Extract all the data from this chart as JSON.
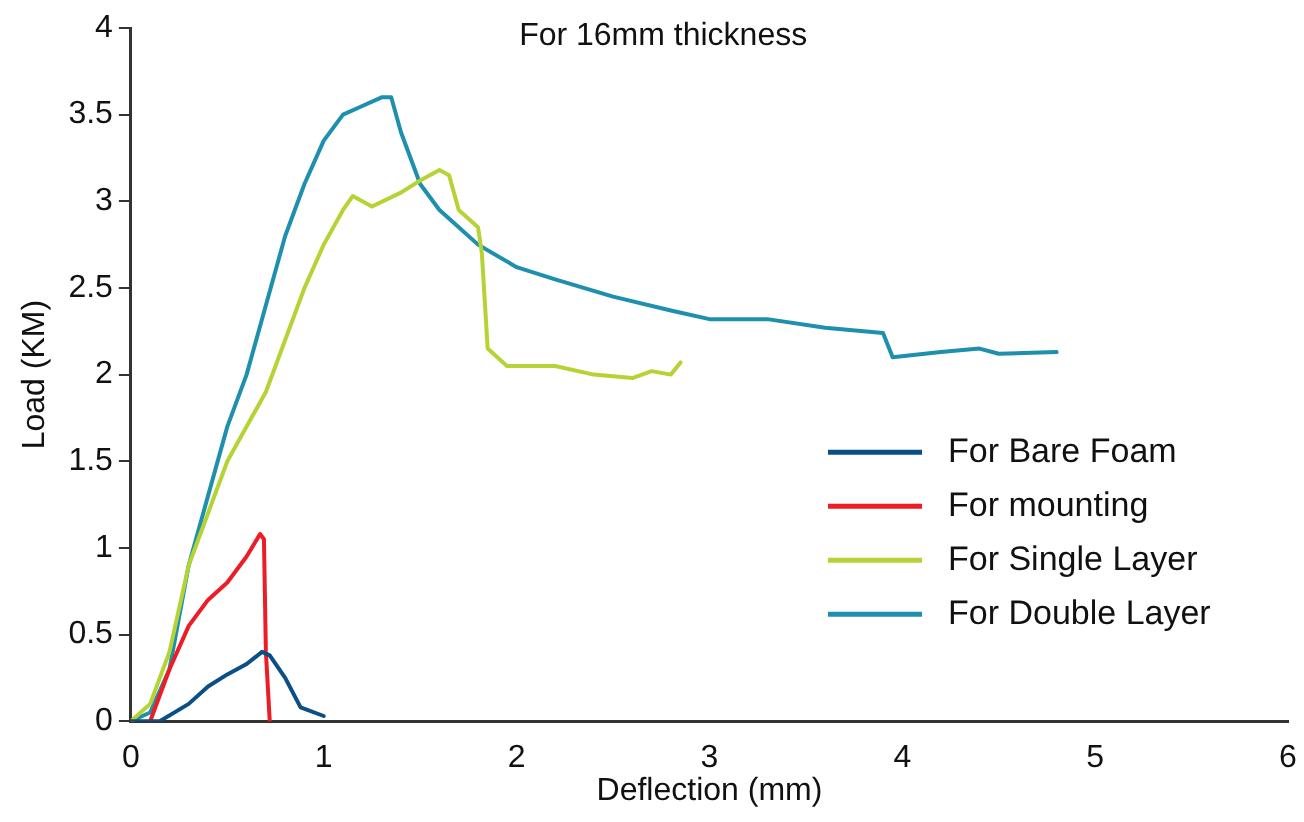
{
  "chart_data": {
    "type": "line",
    "title": "For 16mm thickness",
    "xlabel": "Deflection (mm)",
    "ylabel": "Load (KM)",
    "xlim": [
      0,
      6
    ],
    "xticks": [
      0,
      1,
      2,
      3,
      4,
      5,
      6
    ],
    "ylim": [
      0,
      4
    ],
    "yticks": [
      0,
      0.5,
      1,
      1.5,
      2,
      2.5,
      3,
      3.5,
      4
    ],
    "grid": false,
    "legend": "bottom right",
    "marker": "none",
    "line_style": "solid",
    "series": [
      {
        "name": "For Bare Foam",
        "color": "#0a4f86",
        "x": [
          0,
          0.15,
          0.3,
          0.4,
          0.5,
          0.6,
          0.68,
          0.72,
          0.8,
          0.88,
          1.0
        ],
        "values": [
          0,
          0,
          0.1,
          0.2,
          0.27,
          0.33,
          0.4,
          0.38,
          0.25,
          0.08,
          0.03
        ]
      },
      {
        "name": "For mounting",
        "color": "#ee1c25",
        "x": [
          0.1,
          0.2,
          0.3,
          0.4,
          0.5,
          0.6,
          0.67,
          0.69,
          0.7,
          0.72
        ],
        "values": [
          0,
          0.3,
          0.55,
          0.7,
          0.8,
          0.95,
          1.08,
          1.05,
          0.4,
          0
        ]
      },
      {
        "name": "For Single Layer",
        "color": "#b5d334",
        "x": [
          0,
          0.1,
          0.2,
          0.3,
          0.4,
          0.5,
          0.6,
          0.7,
          0.8,
          0.9,
          1.0,
          1.1,
          1.15,
          1.25,
          1.4,
          1.5,
          1.6,
          1.65,
          1.7,
          1.8,
          1.82,
          1.85,
          1.95,
          2.2,
          2.4,
          2.6,
          2.7,
          2.8,
          2.85
        ],
        "values": [
          0,
          0.1,
          0.4,
          0.9,
          1.2,
          1.5,
          1.7,
          1.9,
          2.2,
          2.5,
          2.75,
          2.95,
          3.03,
          2.97,
          3.05,
          3.12,
          3.18,
          3.15,
          2.95,
          2.85,
          2.7,
          2.15,
          2.05,
          2.05,
          2.0,
          1.98,
          2.02,
          2.0,
          2.07
        ]
      },
      {
        "name": "For Double Layer",
        "color": "#1f8fae",
        "x": [
          0,
          0.1,
          0.2,
          0.3,
          0.4,
          0.5,
          0.6,
          0.7,
          0.8,
          0.9,
          1.0,
          1.1,
          1.2,
          1.3,
          1.35,
          1.4,
          1.5,
          1.6,
          1.7,
          1.8,
          2.0,
          2.2,
          2.5,
          2.8,
          3.0,
          3.3,
          3.6,
          3.9,
          3.95,
          4.2,
          4.4,
          4.5,
          4.8
        ],
        "values": [
          0,
          0.05,
          0.3,
          0.9,
          1.3,
          1.7,
          2.0,
          2.4,
          2.8,
          3.1,
          3.35,
          3.5,
          3.55,
          3.6,
          3.6,
          3.4,
          3.1,
          2.95,
          2.85,
          2.75,
          2.62,
          2.55,
          2.45,
          2.37,
          2.32,
          2.32,
          2.27,
          2.24,
          2.1,
          2.13,
          2.15,
          2.12,
          2.13
        ]
      }
    ]
  }
}
